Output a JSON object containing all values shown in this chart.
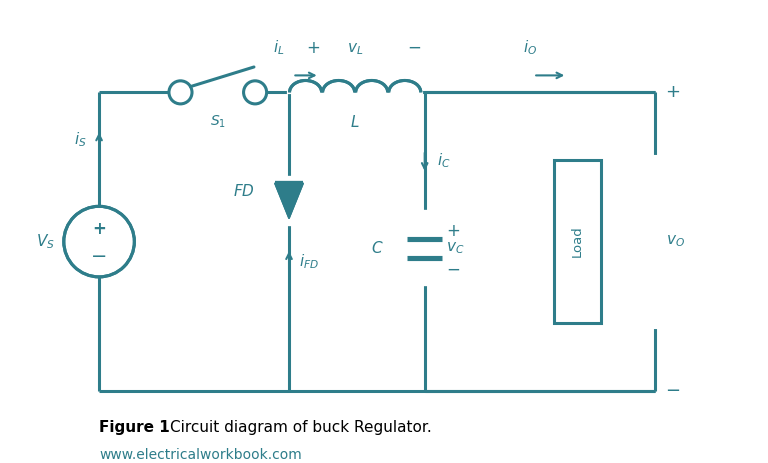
{
  "color": "#2e7d8a",
  "bg_color": "#ffffff",
  "line_width": 2.2,
  "fig_caption_bold": "Figure 1 ",
  "fig_caption_normal": "Circuit diagram of buck Regulator.",
  "fig_url": "www.electricalworkbook.com"
}
